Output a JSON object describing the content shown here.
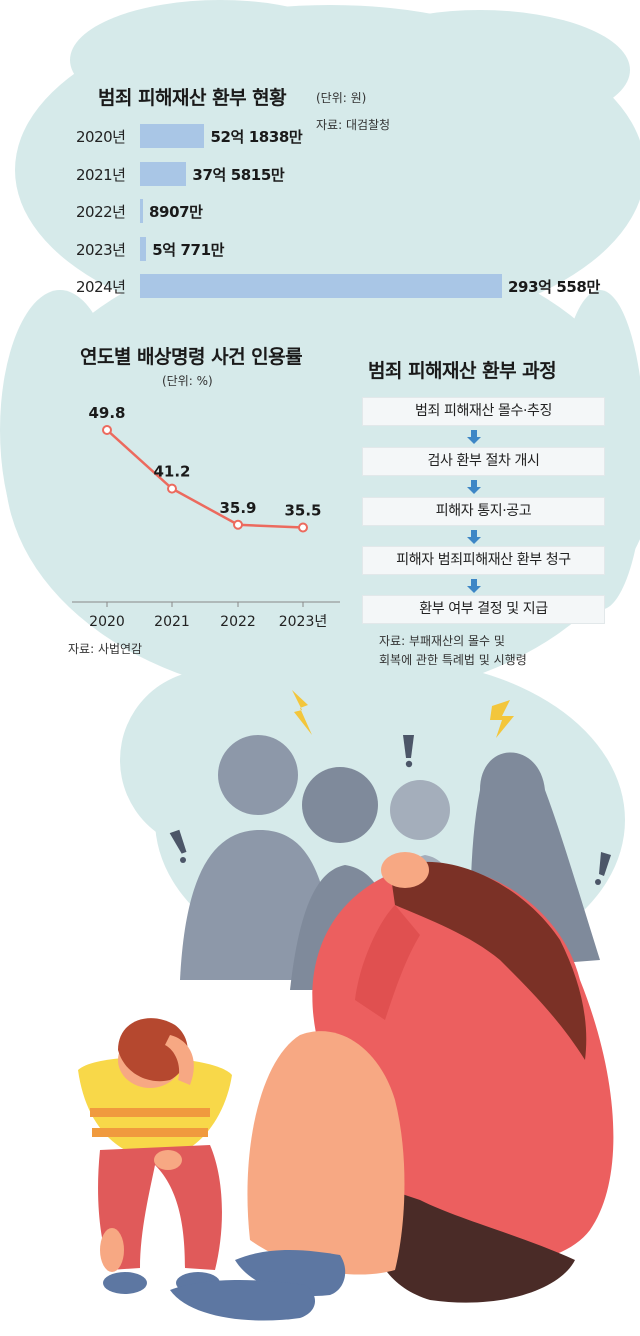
{
  "refund_chart": {
    "title": "범죄 피해재산 환부 현황",
    "unit": "(단위: 원)",
    "source": "자료: 대검찰청",
    "rows": [
      {
        "year": "2020년",
        "label": "52억 1838만"
      },
      {
        "year": "2021년",
        "label": "37억 5815만"
      },
      {
        "year": "2022년",
        "label": "8907만"
      },
      {
        "year": "2023년",
        "label": "5억 771만"
      },
      {
        "year": "2024년",
        "label": "293억 558만"
      }
    ]
  },
  "rate_chart": {
    "title": "연도별 배상명령 사건 인용률",
    "unit": "(단위: %)",
    "source": "자료: 사법연감",
    "x_labels": [
      "2020",
      "2021",
      "2022",
      "2023년"
    ],
    "value_labels": [
      "49.8",
      "41.2",
      "35.9",
      "35.5"
    ]
  },
  "process": {
    "title": "범죄 피해재산 환부 과정",
    "steps": [
      "범죄 피해재산 몰수·추징",
      "검사 환부 절차 개시",
      "피해자 통지·공고",
      "피해자 범죄피해재산 환부 청구",
      "환부 여부 결정 및 지급"
    ],
    "source_line1": "자료: 부패재산의 몰수 및",
    "source_line2": "회복에 관한 특례법 및 시행령"
  },
  "chart_data": [
    {
      "type": "bar",
      "title": "범죄 피해재산 환부 현황",
      "unit": "원",
      "categories": [
        "2020년",
        "2021년",
        "2022년",
        "2023년",
        "2024년"
      ],
      "values": [
        5218380000,
        3758150000,
        89070000,
        507710000,
        29305580000
      ],
      "orientation": "horizontal"
    },
    {
      "type": "line",
      "title": "연도별 배상명령 사건 인용률",
      "unit": "%",
      "x": [
        "2020",
        "2021",
        "2022",
        "2023년"
      ],
      "series": [
        {
          "values": [
            49.8,
            41.2,
            35.9,
            35.5
          ]
        }
      ],
      "ylim": [
        30,
        52
      ],
      "grid": false
    }
  ],
  "colors": {
    "cloud": "#d6eaea",
    "bar": "#a9c6e6",
    "line": "#ec6a5e",
    "arrow": "#3d86c6",
    "sweater": "#ec5f5f",
    "skin": "#f7a883",
    "hair": "#7b3126",
    "shorts": "#4a2b27",
    "shoe": "#5d77a2",
    "silhouette": "#8d98a9",
    "bolt": "#f3c63b"
  },
  "icons": [
    "lightning-bolt-icon",
    "exclamation-icon"
  ]
}
